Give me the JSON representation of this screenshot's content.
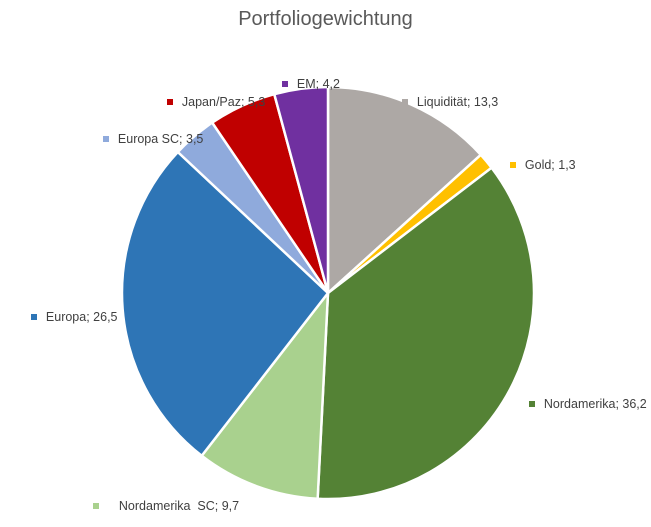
{
  "chart_data": {
    "type": "pie",
    "title": "Portfoliogewichtung",
    "slices": [
      {
        "label": "Liquidität; 13,3",
        "name": "Liquidität",
        "value": 13.3,
        "color": "#ADA8A5"
      },
      {
        "label": "Gold; 1,3",
        "name": "Gold",
        "value": 1.3,
        "color": "#FFC000"
      },
      {
        "label": "Nordamerika; 36,2",
        "name": "Nordamerika",
        "value": 36.2,
        "color": "#548235"
      },
      {
        "label": "Nordamerika  SC; 9,7",
        "name": "Nordamerika SC",
        "value": 9.7,
        "color": "#A9D18E"
      },
      {
        "label": "Europa; 26,5",
        "name": "Europa",
        "value": 26.5,
        "color": "#2E75B6"
      },
      {
        "label": "Europa SC; 3,5",
        "name": "Europa SC",
        "value": 3.5,
        "color": "#8FAADC"
      },
      {
        "label": "Japan/Paz; 5,3",
        "name": "Japan/Paz",
        "value": 5.3,
        "color": "#C00000"
      },
      {
        "label": "EM; 4,2",
        "name": "EM",
        "value": 4.2,
        "color": "#7030A0"
      }
    ],
    "start_angle": "12 o'clock",
    "direction": "clockwise",
    "legend": "none (data callout labels)"
  }
}
